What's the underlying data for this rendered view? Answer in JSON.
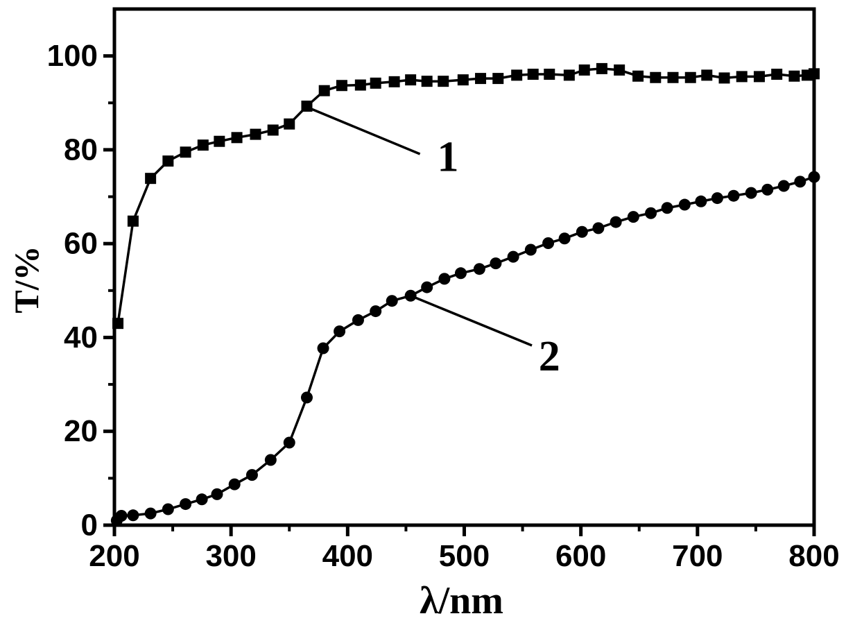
{
  "figure": {
    "background": "#ffffff",
    "ink": "#000000"
  },
  "chart_data": {
    "type": "line",
    "title": "",
    "xlabel": "λ/nm",
    "ylabel": "T/%",
    "xlim": [
      200,
      800
    ],
    "ylim": [
      0,
      110
    ],
    "x_major_ticks": [
      200,
      300,
      400,
      500,
      600,
      700,
      800
    ],
    "x_minor_ticks": [
      250,
      350,
      450,
      550,
      650,
      750
    ],
    "y_major_ticks": [
      0,
      20,
      40,
      60,
      80,
      100
    ],
    "y_minor_ticks": [
      10,
      30,
      50,
      70,
      90
    ],
    "grid": false,
    "legend_position": "none",
    "series": [
      {
        "name": "1",
        "marker": "square",
        "color": "#000000",
        "points": [
          [
            203,
            43.0
          ],
          [
            216,
            64.8
          ],
          [
            231,
            73.9
          ],
          [
            246,
            77.6
          ],
          [
            261,
            79.5
          ],
          [
            276,
            81.0
          ],
          [
            290,
            81.8
          ],
          [
            305,
            82.6
          ],
          [
            321,
            83.3
          ],
          [
            336,
            84.2
          ],
          [
            350,
            85.5
          ],
          [
            365,
            89.3
          ],
          [
            380,
            92.6
          ],
          [
            395,
            93.7
          ],
          [
            411,
            93.8
          ],
          [
            424,
            94.2
          ],
          [
            440,
            94.5
          ],
          [
            454,
            94.9
          ],
          [
            468,
            94.6
          ],
          [
            482,
            94.6
          ],
          [
            499,
            94.9
          ],
          [
            514,
            95.2
          ],
          [
            529,
            95.2
          ],
          [
            545,
            95.9
          ],
          [
            559,
            96.1
          ],
          [
            573,
            96.1
          ],
          [
            590,
            95.9
          ],
          [
            603,
            97.0
          ],
          [
            618,
            97.3
          ],
          [
            633,
            97.0
          ],
          [
            649,
            95.7
          ],
          [
            664,
            95.4
          ],
          [
            679,
            95.4
          ],
          [
            694,
            95.4
          ],
          [
            708,
            95.9
          ],
          [
            723,
            95.3
          ],
          [
            738,
            95.6
          ],
          [
            753,
            95.6
          ],
          [
            768,
            96.1
          ],
          [
            783,
            95.7
          ],
          [
            794,
            95.9
          ],
          [
            800,
            96.2
          ]
        ]
      },
      {
        "name": "2",
        "marker": "circle",
        "color": "#000000",
        "points": [
          [
            202,
            1.0
          ],
          [
            206,
            2.0
          ],
          [
            216,
            2.1
          ],
          [
            231,
            2.5
          ],
          [
            246,
            3.4
          ],
          [
            261,
            4.5
          ],
          [
            275,
            5.5
          ],
          [
            288,
            6.6
          ],
          [
            303,
            8.7
          ],
          [
            318,
            10.7
          ],
          [
            334,
            13.9
          ],
          [
            350,
            17.6
          ],
          [
            365,
            27.2
          ],
          [
            379,
            37.7
          ],
          [
            393,
            41.3
          ],
          [
            409,
            43.7
          ],
          [
            424,
            45.6
          ],
          [
            438,
            47.8
          ],
          [
            454,
            48.9
          ],
          [
            468,
            50.7
          ],
          [
            483,
            52.5
          ],
          [
            497,
            53.7
          ],
          [
            513,
            54.6
          ],
          [
            527,
            55.8
          ],
          [
            542,
            57.2
          ],
          [
            557,
            58.7
          ],
          [
            572,
            60.1
          ],
          [
            586,
            61.1
          ],
          [
            601,
            62.5
          ],
          [
            615,
            63.3
          ],
          [
            630,
            64.6
          ],
          [
            645,
            65.7
          ],
          [
            660,
            66.5
          ],
          [
            674,
            67.6
          ],
          [
            689,
            68.3
          ],
          [
            703,
            69.0
          ],
          [
            717,
            69.7
          ],
          [
            731,
            70.2
          ],
          [
            746,
            70.8
          ],
          [
            760,
            71.5
          ],
          [
            774,
            72.3
          ],
          [
            788,
            73.2
          ],
          [
            800,
            74.2
          ]
        ]
      }
    ],
    "annotations": [
      {
        "label": "1",
        "line_from": [
          366,
          89.0
        ],
        "line_to": [
          462,
          79.1
        ],
        "label_at": [
          486,
          78.4
        ]
      },
      {
        "label": "2",
        "line_from": [
          456,
          48.7
        ],
        "line_to": [
          558,
          38.3
        ],
        "label_at": [
          573,
          35.9
        ]
      }
    ]
  }
}
